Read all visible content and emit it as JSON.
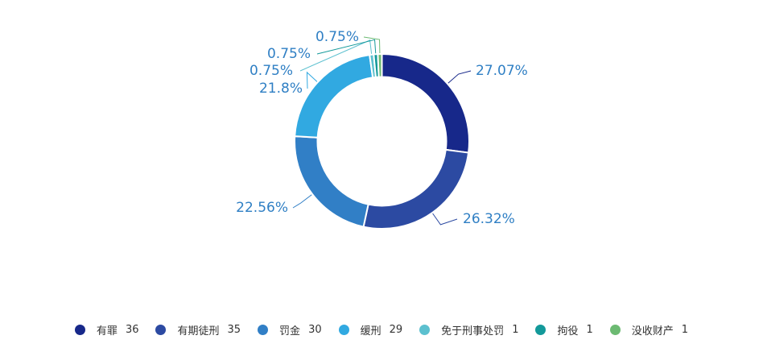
{
  "chart_data": {
    "type": "pie",
    "variant": "donut",
    "title": "",
    "categories": [
      "有罪",
      "有期徒刑",
      "罚金",
      "缓刑",
      "免于刑事处罚",
      "拘役",
      "没收财产"
    ],
    "values": [
      36,
      35,
      30,
      29,
      1,
      1,
      1
    ],
    "percent_labels": [
      "27.07%",
      "26.32%",
      "22.56%",
      "21.8%",
      "0.75%",
      "0.75%",
      "0.75%"
    ],
    "colors": [
      "#17288a",
      "#2c4aa2",
      "#317fc6",
      "#31a9e1",
      "#5cc0cf",
      "#13999a",
      "#6cba72"
    ],
    "legend_position": "bottom"
  }
}
